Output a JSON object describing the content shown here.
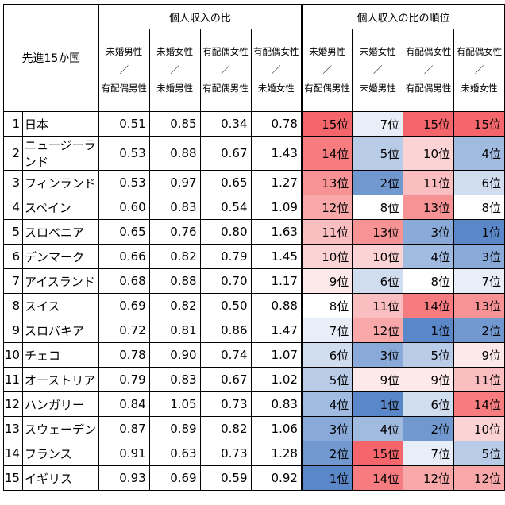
{
  "chart_data": {
    "type": "table",
    "corner_label": "先進15か国",
    "group_headers": [
      "個人収入の比",
      "個人収入の比の順位"
    ],
    "column_headers": [
      [
        "未婚男性",
        "／",
        "有配偶男性"
      ],
      [
        "未婚女性",
        "／",
        "未婚男性"
      ],
      [
        "有配偶女性",
        "／",
        "有配偶男性"
      ],
      [
        "有配偶女性",
        "／",
        "未婚女性"
      ]
    ],
    "rows": [
      {
        "idx": "1",
        "country": "日本",
        "ratios": [
          "0.51",
          "0.85",
          "0.34",
          "0.78"
        ],
        "ranks": [
          "15位",
          "7位",
          "15位",
          "15位"
        ]
      },
      {
        "idx": "2",
        "country": "ニュージーランド",
        "ratios": [
          "0.53",
          "0.88",
          "0.67",
          "1.43"
        ],
        "ranks": [
          "14位",
          "5位",
          "10位",
          "4位"
        ]
      },
      {
        "idx": "3",
        "country": "フィンランド",
        "ratios": [
          "0.53",
          "0.97",
          "0.65",
          "1.27"
        ],
        "ranks": [
          "13位",
          "2位",
          "11位",
          "6位"
        ]
      },
      {
        "idx": "4",
        "country": "スペイン",
        "ratios": [
          "0.60",
          "0.83",
          "0.54",
          "1.09"
        ],
        "ranks": [
          "12位",
          "8位",
          "13位",
          "8位"
        ]
      },
      {
        "idx": "5",
        "country": "スロベニア",
        "ratios": [
          "0.65",
          "0.76",
          "0.80",
          "1.63"
        ],
        "ranks": [
          "11位",
          "13位",
          "3位",
          "1位"
        ]
      },
      {
        "idx": "6",
        "country": "デンマーク",
        "ratios": [
          "0.66",
          "0.82",
          "0.79",
          "1.45"
        ],
        "ranks": [
          "10位",
          "10位",
          "4位",
          "3位"
        ]
      },
      {
        "idx": "7",
        "country": "アイスランド",
        "ratios": [
          "0.68",
          "0.88",
          "0.70",
          "1.17"
        ],
        "ranks": [
          "9位",
          "6位",
          "8位",
          "7位"
        ]
      },
      {
        "idx": "8",
        "country": "スイス",
        "ratios": [
          "0.69",
          "0.82",
          "0.50",
          "0.88"
        ],
        "ranks": [
          "8位",
          "11位",
          "14位",
          "13位"
        ]
      },
      {
        "idx": "9",
        "country": "スロバキア",
        "ratios": [
          "0.72",
          "0.81",
          "0.86",
          "1.47"
        ],
        "ranks": [
          "7位",
          "12位",
          "1位",
          "2位"
        ]
      },
      {
        "idx": "10",
        "country": "チェコ",
        "ratios": [
          "0.78",
          "0.90",
          "0.74",
          "1.07"
        ],
        "ranks": [
          "6位",
          "3位",
          "5位",
          "9位"
        ]
      },
      {
        "idx": "11",
        "country": "オーストリア",
        "ratios": [
          "0.79",
          "0.83",
          "0.67",
          "1.02"
        ],
        "ranks": [
          "5位",
          "9位",
          "9位",
          "11位"
        ]
      },
      {
        "idx": "12",
        "country": "ハンガリー",
        "ratios": [
          "0.84",
          "1.05",
          "0.73",
          "0.83"
        ],
        "ranks": [
          "4位",
          "1位",
          "6位",
          "14位"
        ]
      },
      {
        "idx": "13",
        "country": "スウェーデン",
        "ratios": [
          "0.87",
          "0.89",
          "0.82",
          "1.06"
        ],
        "ranks": [
          "3位",
          "4位",
          "2位",
          "10位"
        ]
      },
      {
        "idx": "14",
        "country": "フランス",
        "ratios": [
          "0.91",
          "0.63",
          "0.73",
          "1.28"
        ],
        "ranks": [
          "2位",
          "15位",
          "7位",
          "5位"
        ]
      },
      {
        "idx": "15",
        "country": "イギリス",
        "ratios": [
          "0.93",
          "0.69",
          "0.59",
          "0.92"
        ],
        "ranks": [
          "1位",
          "14位",
          "12位",
          "12位"
        ]
      }
    ],
    "rank_color_scale": {
      "rank_1": "#5a87c8",
      "rank_8": "#ffffff",
      "rank_15": "#f4666b"
    }
  }
}
